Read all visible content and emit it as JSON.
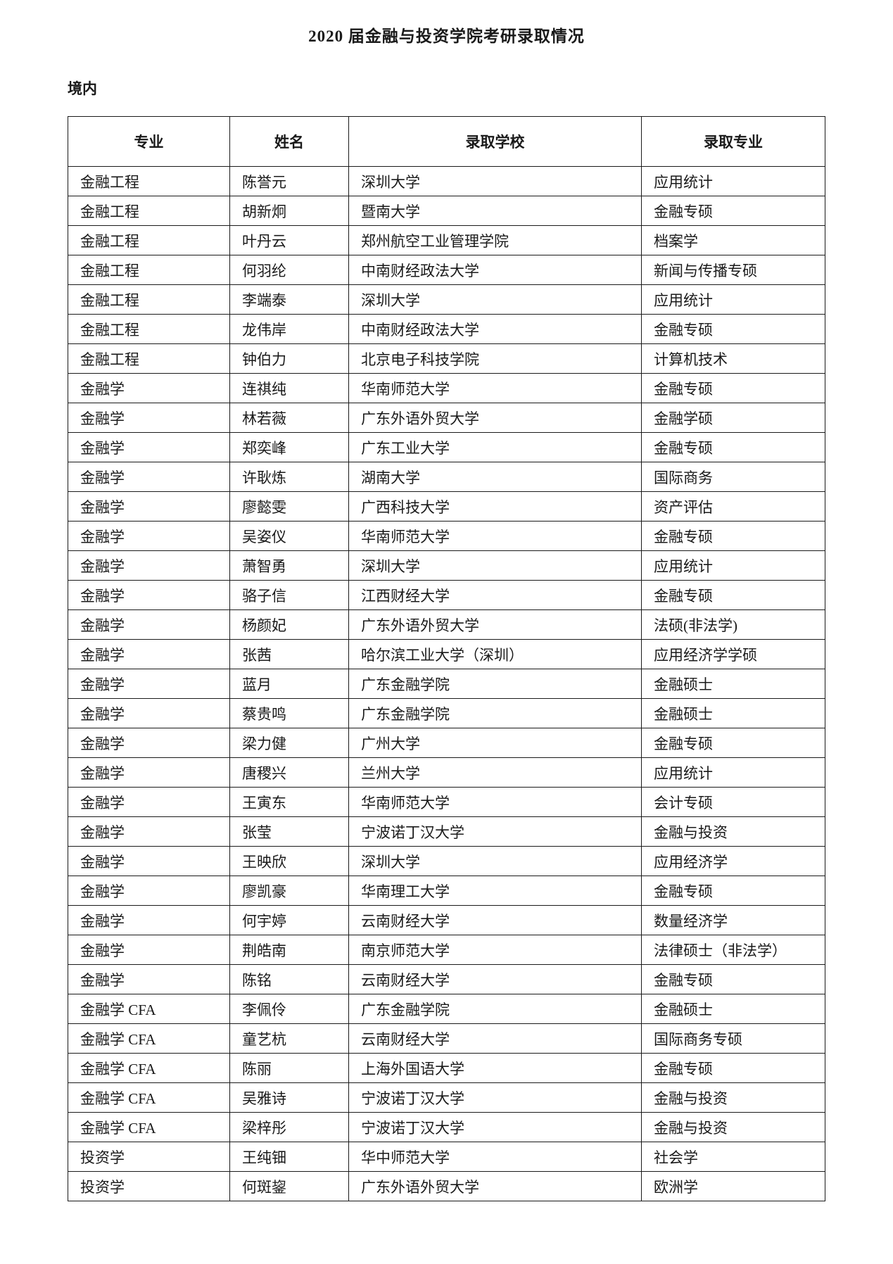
{
  "page": {
    "title": "2020 届金融与投资学院考研录取情况",
    "section_label": "境内"
  },
  "table": {
    "headers": [
      "专业",
      "姓名",
      "录取学校",
      "录取专业"
    ],
    "column_keys": [
      "major",
      "name",
      "school",
      "admitted-major"
    ],
    "rows": [
      [
        "金融工程",
        "陈誉元",
        "深圳大学",
        "应用统计"
      ],
      [
        "金融工程",
        "胡新炯",
        "暨南大学",
        "金融专硕"
      ],
      [
        "金融工程",
        "叶丹云",
        "郑州航空工业管理学院",
        "档案学"
      ],
      [
        "金融工程",
        "何羽纶",
        "中南财经政法大学",
        "新闻与传播专硕"
      ],
      [
        "金融工程",
        "李端泰",
        "深圳大学",
        "应用统计"
      ],
      [
        "金融工程",
        "龙伟岸",
        "中南财经政法大学",
        "金融专硕"
      ],
      [
        "金融工程",
        "钟伯力",
        "北京电子科技学院",
        "计算机技术"
      ],
      [
        "金融学",
        "连祺纯",
        "华南师范大学",
        "金融专硕"
      ],
      [
        "金融学",
        "林若薇",
        "广东外语外贸大学",
        "金融学硕"
      ],
      [
        "金融学",
        "郑奕峰",
        "广东工业大学",
        "金融专硕"
      ],
      [
        "金融学",
        "许耿炼",
        "湖南大学",
        "国际商务"
      ],
      [
        "金融学",
        "廖懿雯",
        "广西科技大学",
        "资产评估"
      ],
      [
        "金融学",
        "吴姿仪",
        "华南师范大学",
        "金融专硕"
      ],
      [
        "金融学",
        "萧智勇",
        "深圳大学",
        "应用统计"
      ],
      [
        "金融学",
        "骆子信",
        "江西财经大学",
        "金融专硕"
      ],
      [
        "金融学",
        "杨颜妃",
        "广东外语外贸大学",
        "法硕(非法学)"
      ],
      [
        "金融学",
        "张茜",
        "哈尔滨工业大学（深圳）",
        "应用经济学学硕"
      ],
      [
        "金融学",
        "蓝月",
        "广东金融学院",
        "金融硕士"
      ],
      [
        "金融学",
        "蔡贵鸣",
        "广东金融学院",
        "金融硕士"
      ],
      [
        "金融学",
        "梁力健",
        "广州大学",
        "金融专硕"
      ],
      [
        "金融学",
        "唐稷兴",
        "兰州大学",
        "应用统计"
      ],
      [
        "金融学",
        "王寅东",
        "华南师范大学",
        "会计专硕"
      ],
      [
        "金融学",
        "张莹",
        "宁波诺丁汉大学",
        "金融与投资"
      ],
      [
        "金融学",
        "王映欣",
        "深圳大学",
        "应用经济学"
      ],
      [
        "金融学",
        "廖凯豪",
        "华南理工大学",
        "金融专硕"
      ],
      [
        "金融学",
        "何宇婷",
        "云南财经大学",
        "数量经济学"
      ],
      [
        "金融学",
        "荆皓南",
        "南京师范大学",
        "法律硕士（非法学）"
      ],
      [
        "金融学",
        "陈铭",
        "云南财经大学",
        "金融专硕"
      ],
      [
        "金融学 CFA",
        "李佩伶",
        "广东金融学院",
        "金融硕士"
      ],
      [
        "金融学 CFA",
        "童艺杭",
        "云南财经大学",
        "国际商务专硕"
      ],
      [
        "金融学 CFA",
        "陈丽",
        "上海外国语大学",
        "金融专硕"
      ],
      [
        "金融学 CFA",
        "吴雅诗",
        "宁波诺丁汉大学",
        "金融与投资"
      ],
      [
        "金融学 CFA",
        "梁梓彤",
        "宁波诺丁汉大学",
        "金融与投资"
      ],
      [
        "投资学",
        "王纯钿",
        "华中师范大学",
        "社会学"
      ],
      [
        "投资学",
        "何斑鋆",
        "广东外语外贸大学",
        "欧洲学"
      ]
    ]
  }
}
